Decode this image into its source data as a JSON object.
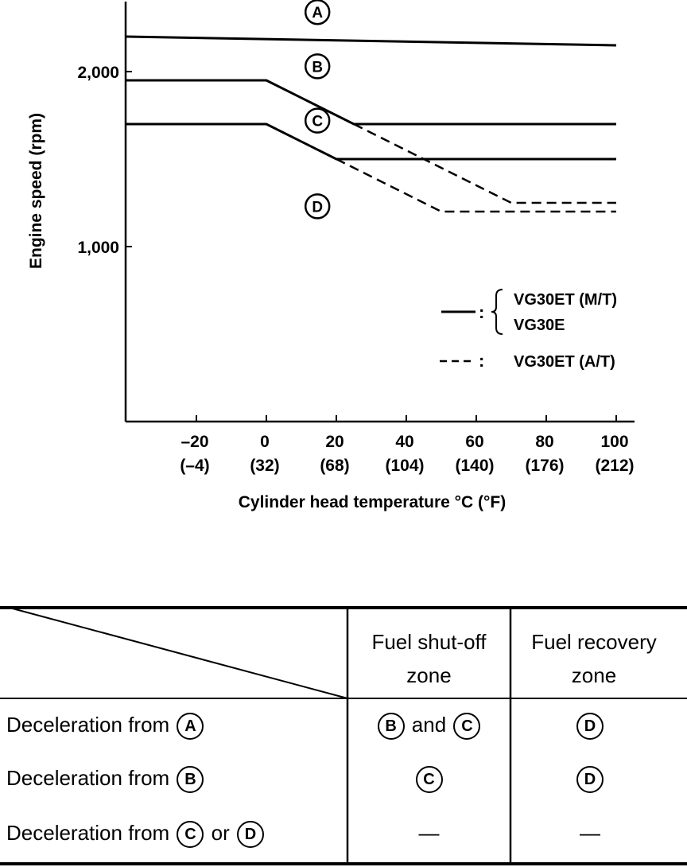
{
  "chart_data": {
    "type": "line",
    "title": "",
    "xlabel": "Cylinder head temperature °C (°F)",
    "ylabel": "Engine speed (rpm)",
    "xlim": [
      -40,
      102
    ],
    "ylim": [
      0,
      2400
    ],
    "x_ticks": [
      {
        "c": "–20",
        "f": "(–4)",
        "v": -20
      },
      {
        "c": "0",
        "f": "(32)",
        "v": 0
      },
      {
        "c": "20",
        "f": "(68)",
        "v": 20
      },
      {
        "c": "40",
        "f": "(104)",
        "v": 40
      },
      {
        "c": "60",
        "f": "(140)",
        "v": 60
      },
      {
        "c": "80",
        "f": "(176)",
        "v": 80
      },
      {
        "c": "100",
        "f": "(212)",
        "v": 100
      }
    ],
    "y_ticks": [
      {
        "label": "1,000",
        "v": 1000
      },
      {
        "label": "2,000",
        "v": 2000
      }
    ],
    "series": [
      {
        "name": "A/B boundary",
        "style": "solid",
        "points": [
          [
            -40,
            2200
          ],
          [
            100,
            2150
          ]
        ]
      },
      {
        "name": "B/C boundary",
        "style": "solid",
        "points": [
          [
            -40,
            1950
          ],
          [
            0,
            1950
          ],
          [
            25,
            1700
          ],
          [
            100,
            1700
          ]
        ]
      },
      {
        "name": "C/D boundary",
        "style": "solid",
        "points": [
          [
            -40,
            1700
          ],
          [
            0,
            1700
          ],
          [
            20,
            1500
          ],
          [
            100,
            1500
          ]
        ]
      },
      {
        "name": "B/C boundary A/T",
        "style": "dashed",
        "points": [
          [
            25,
            1700
          ],
          [
            70,
            1250
          ],
          [
            100,
            1250
          ]
        ]
      },
      {
        "name": "C/D boundary A/T",
        "style": "dashed",
        "points": [
          [
            20,
            1500
          ],
          [
            50,
            1200
          ],
          [
            100,
            1200
          ]
        ]
      }
    ],
    "zones": [
      {
        "label": "A",
        "x": 8,
        "y": 2340
      },
      {
        "label": "B",
        "x": 8,
        "y": 2030
      },
      {
        "label": "C",
        "x": 8,
        "y": 1720
      },
      {
        "label": "D",
        "x": 8,
        "y": 1230
      }
    ],
    "legend": {
      "solid_marker": "——:",
      "solid_labels": [
        "VG30ET (M/T)",
        "VG30E"
      ],
      "dashed_marker": "- - -:",
      "dashed_label": "VG30ET (A/T)"
    }
  },
  "table": {
    "headers": [
      "Fuel shut-off zone",
      "Fuel recovery zone"
    ],
    "header_lines": [
      [
        "Fuel shut-off",
        "zone"
      ],
      [
        "Fuel recovery",
        "zone"
      ]
    ],
    "rows": [
      {
        "label": "Deceleration from",
        "from": [
          "A"
        ],
        "from_joiner": "",
        "shutoff": [
          "B",
          "C"
        ],
        "shutoff_joiner": "and",
        "recovery": [
          "D"
        ]
      },
      {
        "label": "Deceleration from",
        "from": [
          "B"
        ],
        "from_joiner": "",
        "shutoff": [
          "C"
        ],
        "shutoff_joiner": "",
        "recovery": [
          "D"
        ]
      },
      {
        "label": "Deceleration from",
        "from": [
          "C",
          "D"
        ],
        "from_joiner": "or",
        "shutoff_text": "—",
        "recovery_text": "—"
      }
    ]
  }
}
